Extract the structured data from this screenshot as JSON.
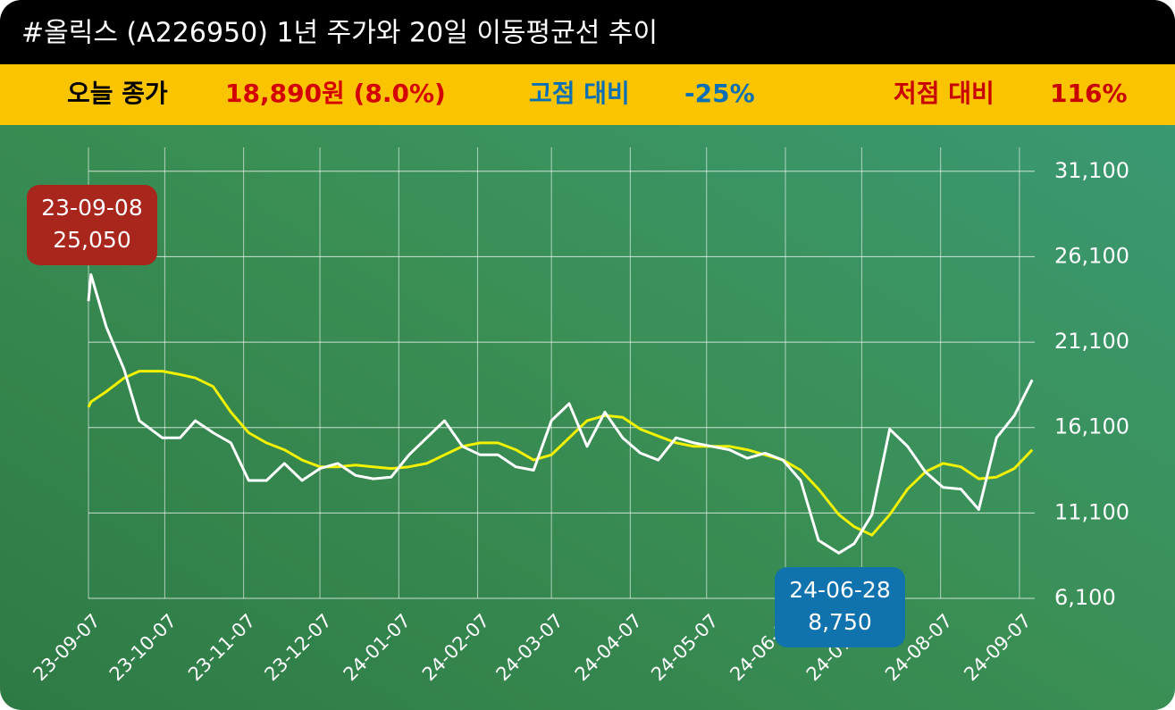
{
  "chart_data": {
    "type": "line",
    "title": "#올릭스 (A226950) 1년 주가와 20일 이동평균선 추이",
    "summary": [
      {
        "label": "오늘 종가",
        "value": "18,890원 (8.0%)",
        "color": "#d40000"
      },
      {
        "label": "고점 대비",
        "value": "-25%",
        "color": "#0a6fb5"
      },
      {
        "label": "저점 대비",
        "value": "116%",
        "color": "#c80000"
      }
    ],
    "x": [
      "23-09-07",
      "23-09-08",
      "23-09-14",
      "23-09-21",
      "23-09-27",
      "23-10-06",
      "23-10-13",
      "23-10-19",
      "23-10-26",
      "23-11-02",
      "23-11-09",
      "23-11-16",
      "23-11-23",
      "23-11-30",
      "23-12-07",
      "23-12-14",
      "23-12-21",
      "23-12-28",
      "24-01-04",
      "24-01-11",
      "24-01-18",
      "24-01-25",
      "24-02-01",
      "24-02-08",
      "24-02-15",
      "24-02-22",
      "24-02-29",
      "24-03-07",
      "24-03-14",
      "24-03-21",
      "24-03-28",
      "24-04-04",
      "24-04-11",
      "24-04-18",
      "24-04-25",
      "24-05-02",
      "24-05-09",
      "24-05-16",
      "24-05-23",
      "24-05-30",
      "24-06-06",
      "24-06-13",
      "24-06-20",
      "24-06-28",
      "24-07-04",
      "24-07-11",
      "24-07-18",
      "24-07-25",
      "24-08-01",
      "24-08-08",
      "24-08-15",
      "24-08-22",
      "24-08-29",
      "24-09-05",
      "24-09-12"
    ],
    "series": [
      {
        "name": "주가",
        "color": "#ffffff",
        "values": [
          23500,
          25050,
          22000,
          19500,
          16500,
          15500,
          15500,
          16500,
          15800,
          15200,
          13000,
          13000,
          14000,
          13000,
          13700,
          14000,
          13300,
          13100,
          13200,
          14500,
          15500,
          16500,
          15000,
          14500,
          14500,
          13800,
          13600,
          16500,
          17500,
          15000,
          17000,
          15500,
          14600,
          14200,
          15500,
          15200,
          15000,
          14800,
          14300,
          14600,
          14200,
          13000,
          9500,
          8750,
          9300,
          11000,
          16000,
          15000,
          13500,
          12600,
          12500,
          11300,
          15500,
          16800,
          18890
        ]
      },
      {
        "name": "20일 이동평균",
        "color": "#f2f200",
        "values": [
          17300,
          17600,
          18200,
          19000,
          19400,
          19400,
          19200,
          19000,
          18500,
          17000,
          15800,
          15200,
          14800,
          14200,
          13800,
          13800,
          13900,
          13800,
          13700,
          13800,
          14000,
          14500,
          15000,
          15200,
          15200,
          14800,
          14200,
          14500,
          15500,
          16500,
          16800,
          16700,
          16000,
          15600,
          15200,
          15000,
          15000,
          15000,
          14800,
          14500,
          14200,
          13600,
          12500,
          11000,
          10300,
          9800,
          11000,
          12500,
          13500,
          14000,
          13800,
          13100,
          13200,
          13700,
          14800
        ]
      }
    ],
    "xlim": [
      "23-09-07",
      "24-09-13"
    ],
    "xticks": [
      "23-09-07",
      "23-10-07",
      "23-11-07",
      "23-12-07",
      "24-01-07",
      "24-02-07",
      "24-03-07",
      "24-04-07",
      "24-05-07",
      "24-06-07",
      "24-07-07",
      "24-08-07",
      "24-09-07"
    ],
    "ylim": [
      6100,
      32500
    ],
    "yticks": [
      {
        "value": 6100,
        "label": "6,100"
      },
      {
        "value": 11100,
        "label": "11,100"
      },
      {
        "value": 16100,
        "label": "16,100"
      },
      {
        "value": 21100,
        "label": "21,100"
      },
      {
        "value": 26100,
        "label": "26,100"
      },
      {
        "value": 31100,
        "label": "31,100"
      }
    ],
    "grid": true,
    "annotations": [
      {
        "x": "23-09-08",
        "y": 25050,
        "y_label": "25,050",
        "color": "#a8261c"
      },
      {
        "x": "24-06-28",
        "y": 8750,
        "y_label": "8,750",
        "color": "#1173ae"
      }
    ]
  }
}
